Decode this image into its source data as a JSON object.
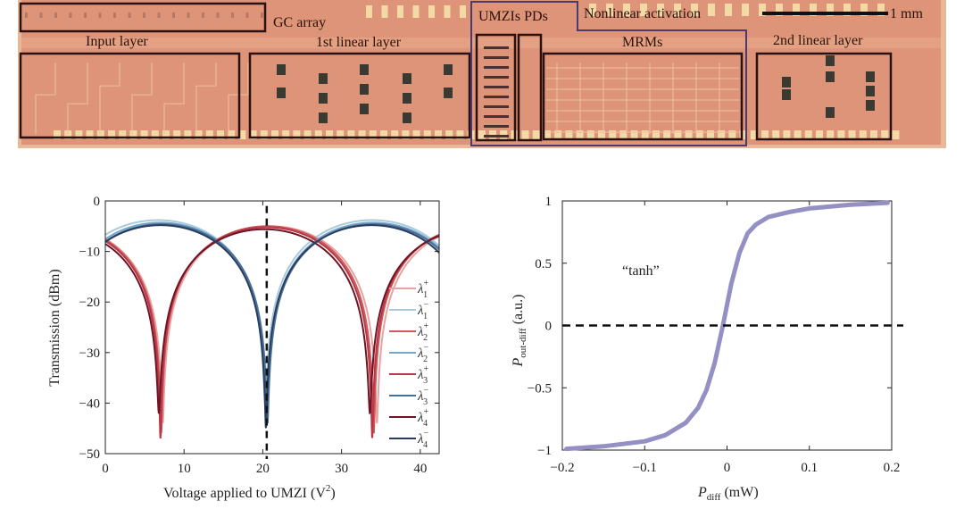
{
  "chip": {
    "labels": {
      "gc_array": "GC array",
      "input_layer": "Input layer",
      "linear1": "1st linear layer",
      "umzis_pds": "UMZIs PDs",
      "nonlinear": "Nonlinear activation",
      "mrms": "MRMs",
      "linear2": "2nd linear layer",
      "scale": "1 mm"
    },
    "colors": {
      "substrate": "#dd9478",
      "border": "#e8b898",
      "pad": "#f2d9a6",
      "box": "#2a1010",
      "nonlinear_box": "#4a3a70",
      "device": "#3a3a32"
    }
  },
  "chart_data": [
    {
      "type": "line",
      "title": "",
      "xlabel": "Voltage applied to UMZI (V",
      "xlabel_sup": "2",
      "xlabel_end": ")",
      "ylabel": "Transmission (dBm)",
      "xlim": [
        0,
        42.4
      ],
      "ylim": [
        -50,
        0
      ],
      "xticks": [
        "0",
        "10",
        "20",
        "30",
        "40"
      ],
      "xtick_values": [
        0,
        10,
        20,
        30,
        40
      ],
      "yticks": [
        "0",
        "−10",
        "−20",
        "−30",
        "−40",
        "−50"
      ],
      "ytick_values": [
        0,
        -10,
        -20,
        -30,
        -40,
        -50
      ],
      "grid": false,
      "legend_position": "right",
      "reference_line": {
        "x": 20.5,
        "style": "dashed"
      },
      "model": "T = max + 10*log10(sin^2(pi*(V - null)/period) + 10^((min-max)/10))",
      "series": [
        {
          "name": "λ",
          "sup": "+",
          "sub": "1",
          "color": "#e8a2a2",
          "period": 27.2,
          "null_v": 7.3,
          "max_dbm": -5.0,
          "min_dbm": -44
        },
        {
          "name": "λ",
          "sup": "−",
          "sub": "1",
          "color": "#a9cbdc",
          "period": 27.2,
          "null_v": 20.3,
          "max_dbm": -3.8,
          "min_dbm": -40
        },
        {
          "name": "λ",
          "sup": "+",
          "sub": "2",
          "color": "#d05a5a",
          "period": 27.0,
          "null_v": 7.1,
          "max_dbm": -5.0,
          "min_dbm": -46
        },
        {
          "name": "λ",
          "sup": "−",
          "sub": "2",
          "color": "#74a6c8",
          "period": 27.0,
          "null_v": 20.5,
          "max_dbm": -4.3,
          "min_dbm": -42
        },
        {
          "name": "λ",
          "sup": "+",
          "sub": "3",
          "color": "#b83848",
          "period": 26.9,
          "null_v": 7.0,
          "max_dbm": -5.2,
          "min_dbm": -47
        },
        {
          "name": "λ",
          "sup": "−",
          "sub": "3",
          "color": "#46709a",
          "period": 26.9,
          "null_v": 20.6,
          "max_dbm": -4.6,
          "min_dbm": -44
        },
        {
          "name": "λ",
          "sup": "+",
          "sub": "4",
          "color": "#6e1424",
          "period": 26.8,
          "null_v": 6.8,
          "max_dbm": -5.6,
          "min_dbm": -42
        },
        {
          "name": "λ",
          "sup": "−",
          "sub": "4",
          "color": "#2c3c5c",
          "period": 26.8,
          "null_v": 20.4,
          "max_dbm": -4.8,
          "min_dbm": -45
        }
      ]
    },
    {
      "type": "line",
      "title": "",
      "xlabel": "P",
      "xlabel_sub": "diff",
      "xlabel_end": " (mW)",
      "ylabel": "P",
      "ylabel_sub": "out-diff",
      "ylabel_end": " (a.u.)",
      "annotation": "“tanh”",
      "xlim": [
        -0.2,
        0.2
      ],
      "ylim": [
        -1,
        1
      ],
      "xticks": [
        "−0.2",
        "−0.1",
        "0",
        "0.1",
        "0.2"
      ],
      "xtick_values": [
        -0.2,
        -0.1,
        0,
        0.1,
        0.2
      ],
      "yticks": [
        "1",
        "0.5",
        "0",
        "−0.5",
        "−1"
      ],
      "ytick_values": [
        1,
        0.5,
        0,
        -0.5,
        -1
      ],
      "grid": false,
      "reference_line": {
        "y": 0,
        "style": "dashed"
      },
      "series": [
        {
          "name": "tanh response",
          "color": "#9490c4",
          "x": [
            -0.195,
            -0.15,
            -0.1,
            -0.075,
            -0.05,
            -0.035,
            -0.025,
            -0.015,
            -0.005,
            0.005,
            0.015,
            0.025,
            0.035,
            0.05,
            0.075,
            0.1,
            0.15,
            0.195
          ],
          "y": [
            -0.99,
            -0.97,
            -0.93,
            -0.88,
            -0.78,
            -0.66,
            -0.52,
            -0.3,
            0.0,
            0.33,
            0.58,
            0.74,
            0.81,
            0.87,
            0.91,
            0.94,
            0.97,
            0.985
          ]
        }
      ]
    }
  ]
}
